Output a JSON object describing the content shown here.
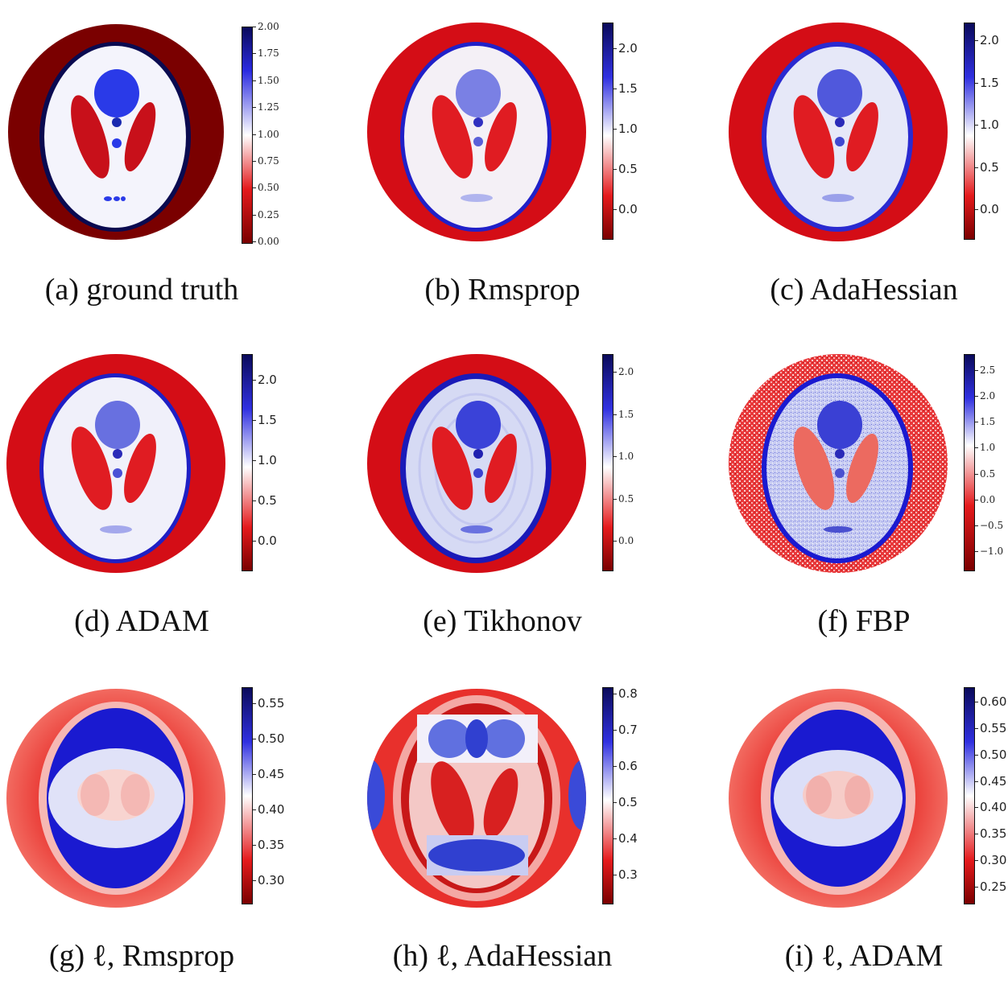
{
  "panels": [
    {
      "id": "a",
      "caption": "(a) ground truth",
      "ticks": [
        "2.00",
        "1.75",
        "1.50",
        "1.25",
        "1.00",
        "0.75",
        "0.50",
        "0.25",
        "0.00"
      ],
      "tickstyle": "serif"
    },
    {
      "id": "b",
      "caption": "(b) Rmsprop",
      "ticks": [
        "2.0",
        "1.5",
        "1.0",
        "0.5",
        "0.0"
      ],
      "tickstyle": "sans"
    },
    {
      "id": "c",
      "caption": "(c) AdaHessian",
      "ticks": [
        "2.0",
        "1.5",
        "1.0",
        "0.5",
        "0.0"
      ],
      "tickstyle": "sans"
    },
    {
      "id": "d",
      "caption": "(d) ADAM",
      "ticks": [
        "2.0",
        "1.5",
        "1.0",
        "0.5",
        "0.0"
      ],
      "tickstyle": "sans"
    },
    {
      "id": "e",
      "caption": "(e) Tikhonov",
      "ticks": [
        "2.0",
        "1.5",
        "1.0",
        "0.5",
        "0.0"
      ],
      "tickstyle": "serif"
    },
    {
      "id": "f",
      "caption": "(f) FBP",
      "ticks": [
        "2.5",
        "2.0",
        "1.5",
        "1.0",
        "0.5",
        "0.0",
        "−0.5",
        "−1.0"
      ],
      "tickstyle": "serif"
    },
    {
      "id": "g",
      "caption": "(g) ℓ, Rmsprop",
      "ticks": [
        "0.55",
        "0.50",
        "0.45",
        "0.40",
        "0.35",
        "0.30"
      ],
      "tickstyle": "sans"
    },
    {
      "id": "h",
      "caption": "(h) ℓ, AdaHessian",
      "ticks": [
        "0.8",
        "0.7",
        "0.6",
        "0.5",
        "0.4",
        "0.3"
      ],
      "tickstyle": "sans"
    },
    {
      "id": "i",
      "caption": "(i) ℓ, ADAM",
      "ticks": [
        "0.60",
        "0.55",
        "0.50",
        "0.45",
        "0.40",
        "0.35",
        "0.30",
        "0.25"
      ],
      "tickstyle": "sans"
    }
  ],
  "colormap": {
    "low": "#8b0000",
    "mid_low": "#e41a1c",
    "mid": "#ffffff",
    "mid_high": "#3030e0",
    "high": "#0a0a5a"
  }
}
